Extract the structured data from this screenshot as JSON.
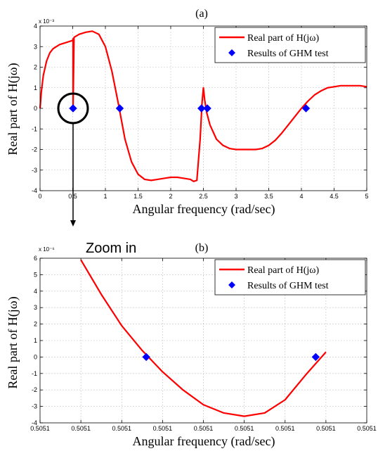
{
  "chart_data": [
    {
      "type": "line",
      "title": "(a)",
      "xlabel": "Angular frequency (rad/sec)",
      "ylabel": "Real part of H(jω)",
      "y_exponent_label": "x 10⁻³",
      "xlim": [
        0,
        5
      ],
      "ylim": [
        -4,
        4
      ],
      "grid": true,
      "legend_placement": "top-right",
      "x_ticks": [
        "0",
        "0.5",
        "1",
        "1.5",
        "2",
        "2.5",
        "3",
        "3.5",
        "4",
        "4.5",
        "5"
      ],
      "y_ticks": [
        "-4",
        "-3",
        "-2",
        "-1",
        "0",
        "1",
        "2",
        "3",
        "4"
      ],
      "series": [
        {
          "name": "Real part of H(jω)",
          "style": "line",
          "color": "#ff0000",
          "x": [
            0,
            0.02,
            0.05,
            0.1,
            0.15,
            0.2,
            0.3,
            0.4,
            0.5,
            0.5051,
            0.5052,
            0.52,
            0.6,
            0.7,
            0.8,
            0.9,
            1.0,
            1.1,
            1.2,
            1.3,
            1.4,
            1.5,
            1.6,
            1.7,
            1.8,
            1.9,
            2.0,
            2.1,
            2.2,
            2.3,
            2.35,
            2.4,
            2.45,
            2.48,
            2.5,
            2.52,
            2.55,
            2.6,
            2.7,
            2.8,
            2.9,
            3.0,
            3.1,
            3.2,
            3.3,
            3.4,
            3.5,
            3.6,
            3.7,
            3.8,
            3.9,
            4.0,
            4.1,
            4.2,
            4.3,
            4.4,
            4.5,
            4.6,
            4.7,
            4.8,
            4.9,
            5.0
          ],
          "y": [
            0,
            0.8,
            1.6,
            2.3,
            2.7,
            2.9,
            3.1,
            3.2,
            3.3,
            3.38,
            0,
            3.45,
            3.6,
            3.7,
            3.75,
            3.6,
            3.0,
            1.8,
            0.2,
            -1.5,
            -2.6,
            -3.2,
            -3.45,
            -3.5,
            -3.45,
            -3.4,
            -3.35,
            -3.35,
            -3.4,
            -3.45,
            -3.55,
            -3.5,
            -1.5,
            0.3,
            1.0,
            0.4,
            -0.2,
            -0.8,
            -1.5,
            -1.8,
            -1.95,
            -2.0,
            -2.0,
            -2.0,
            -2.0,
            -1.95,
            -1.8,
            -1.55,
            -1.2,
            -0.8,
            -0.4,
            0.0,
            0.35,
            0.65,
            0.85,
            1.0,
            1.05,
            1.1,
            1.1,
            1.1,
            1.1,
            1.05
          ]
        },
        {
          "name": "Results of GHM test",
          "style": "marker",
          "color": "#0000ff",
          "x": [
            0.5051,
            1.22,
            2.47,
            2.56,
            4.07
          ],
          "y": [
            0,
            0,
            0,
            0,
            0
          ]
        }
      ],
      "annotation": {
        "circle_center": [
          0.5051,
          0
        ],
        "arrow_text": "Zoom in"
      }
    },
    {
      "type": "line",
      "title": "(b)",
      "xlabel": "Angular frequency (rad/sec)",
      "ylabel": "Real part of H(jω)",
      "y_exponent_label": "x 10⁻⁶",
      "xlim": [
        0,
        8
      ],
      "ylim": [
        -4,
        6
      ],
      "grid": true,
      "legend_placement": "top-right",
      "x_ticks": [
        "0.5051",
        "0.5051",
        "0.5051",
        "0.5051",
        "0.5051",
        "0.5051",
        "0.5051",
        "0.5051",
        "0.5051"
      ],
      "y_ticks": [
        "-4",
        "-3",
        "-2",
        "-1",
        "0",
        "1",
        "2",
        "3",
        "4",
        "5",
        "6"
      ],
      "series": [
        {
          "name": "Real part of H(jω)",
          "style": "line",
          "color": "#ff0000",
          "x": [
            1,
            1.5,
            2,
            2.5,
            3,
            3.5,
            4,
            4.5,
            5,
            5.5,
            6,
            6.5,
            7
          ],
          "y": [
            5.9,
            3.8,
            1.9,
            0.4,
            -0.9,
            -2.0,
            -2.9,
            -3.4,
            -3.6,
            -3.4,
            -2.6,
            -1.1,
            0.3
          ]
        },
        {
          "name": "Results of GHM test",
          "style": "marker",
          "color": "#0000ff",
          "x": [
            2.6,
            6.75
          ],
          "y": [
            0,
            0
          ]
        }
      ]
    }
  ]
}
